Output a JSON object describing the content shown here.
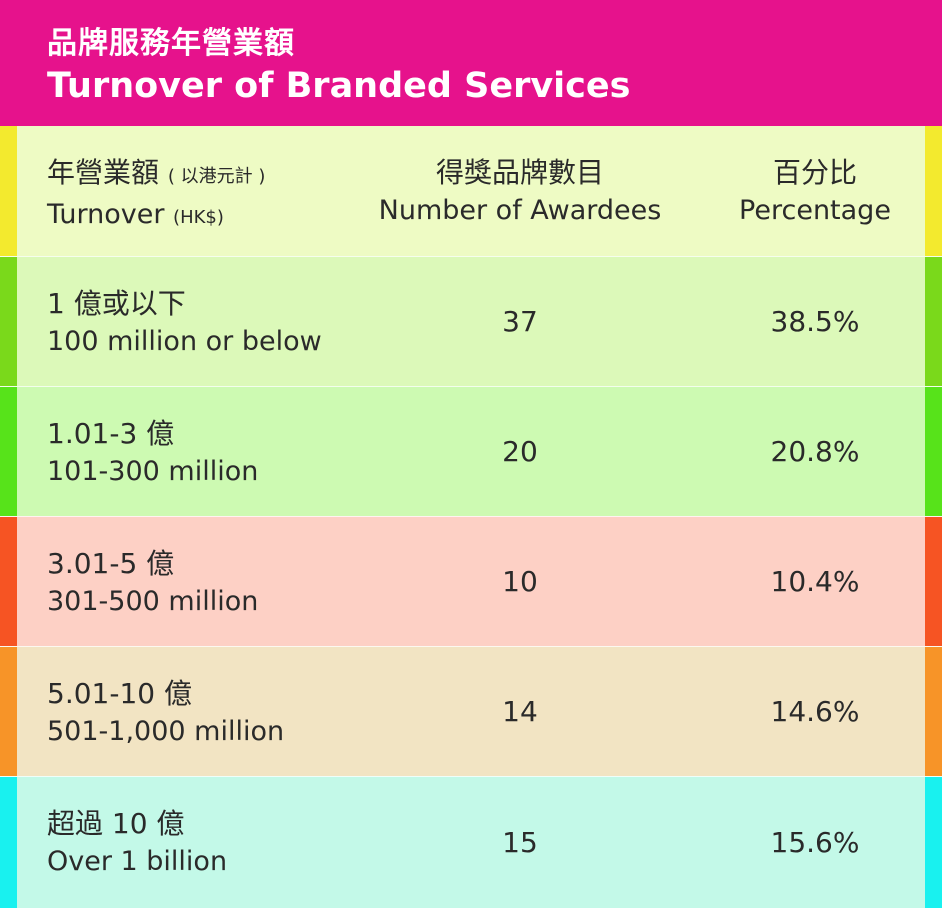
{
  "title": {
    "zh": "品牌服務年營業額",
    "en": "Turnover of Branded Services"
  },
  "header": {
    "col1_zh": "年營業額",
    "col1_zh_note": "( 以港元計 )",
    "col1_en": "Turnover",
    "col1_en_note": "(HK$)",
    "col2_zh": "得獎品牌數目",
    "col2_en": "Number of Awardees",
    "col3_zh": "百分比",
    "col3_en": "Percentage",
    "colors": {
      "bg": "#eefbc4",
      "stripe": "#f3ea2e"
    }
  },
  "chart_data": {
    "type": "table",
    "title": "Turnover of Branded Services",
    "columns": [
      "Turnover (HK$)",
      "Number of Awardees",
      "Percentage"
    ],
    "rows": [
      {
        "label_zh": "1 億或以下",
        "label_en": "100 million or below",
        "count": "37",
        "percent": "38.5%",
        "bg": "#dcf9b9",
        "stripe": "#7ad91b"
      },
      {
        "label_zh": "1.01-3 億",
        "label_en": "101-300 million",
        "count": "20",
        "percent": "20.8%",
        "bg": "#cdfab2",
        "stripe": "#57e31a"
      },
      {
        "label_zh": "3.01-5 億",
        "label_en": "301-500 million",
        "count": "10",
        "percent": "10.4%",
        "bg": "#fdd0c5",
        "stripe": "#f65423"
      },
      {
        "label_zh": "5.01-10 億",
        "label_en": "501-1,000 million",
        "count": "14",
        "percent": "14.6%",
        "bg": "#f2e4c3",
        "stripe": "#f79428"
      },
      {
        "label_zh": "超過 10 億",
        "label_en": "Over 1 billion",
        "count": "15",
        "percent": "15.6%",
        "bg": "#c3f9e8",
        "stripe": "#19f1ef"
      }
    ]
  }
}
